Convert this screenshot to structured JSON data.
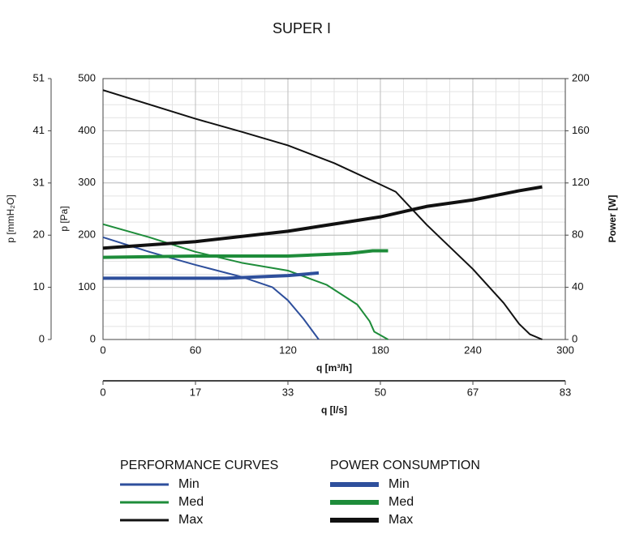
{
  "chart_data": {
    "type": "line",
    "title": "SUPER I",
    "x_label": "q [m³/h]",
    "xlim": [
      0,
      300
    ],
    "xticks": [
      0,
      60,
      120,
      180,
      240,
      300
    ],
    "x_alt_label": "q [l/s]",
    "x_alt_lim": [
      0,
      83.33
    ],
    "x_alt_ticks": [
      0,
      {
        "value": 16.67,
        "label": "17"
      },
      {
        "value": 33.33,
        "label": "33"
      },
      50,
      {
        "value": 66.67,
        "label": "67"
      },
      {
        "value": 83.33,
        "label": "83"
      }
    ],
    "y_label": "p [Pa]",
    "ylim": [
      0,
      500
    ],
    "yticks": [
      0,
      100,
      200,
      300,
      400,
      500
    ],
    "y_alt_label": "p [mmH₂O]",
    "y_alt_lim": [
      0,
      50.99
    ],
    "y_alt_ticks": [
      0,
      {
        "value": 10.2,
        "label": "10"
      },
      {
        "value": 20.39,
        "label": "20"
      },
      {
        "value": 30.59,
        "label": "31"
      },
      {
        "value": 40.79,
        "label": "41"
      },
      {
        "value": 50.99,
        "label": "51"
      }
    ],
    "y2_label": "Power [W]",
    "y2lim": [
      0,
      200
    ],
    "y2ticks": [
      0,
      40,
      80,
      120,
      160,
      200
    ],
    "grid": true,
    "legend_titles": [
      "PERFORMANCE CURVES",
      "POWER CONSUMPTION"
    ],
    "series": [
      {
        "name": "Min",
        "color": "#2e4f9c",
        "x": [
          0,
          30,
          60,
          90,
          110,
          120,
          130,
          135,
          140
        ],
        "values": [
          196,
          168,
          143,
          120,
          100,
          75,
          40,
          20,
          0
        ]
      },
      {
        "name": "Med",
        "color": "#1e8c3a",
        "x": [
          0,
          30,
          60,
          90,
          120,
          145,
          165,
          173,
          176,
          185
        ],
        "values": [
          221,
          196,
          168,
          147,
          132,
          105,
          67,
          35,
          15,
          0
        ]
      },
      {
        "name": "Max",
        "color": "#111111",
        "x": [
          0,
          60,
          90,
          120,
          150,
          180,
          190,
          210,
          240,
          260,
          270,
          277,
          285
        ],
        "values": [
          478,
          423,
          398,
          372,
          338,
          297,
          283,
          220,
          135,
          70,
          30,
          10,
          0
        ]
      },
      {
        "name": "Min",
        "color": "#2e4f9c",
        "axis": "y2",
        "x": [
          0,
          80,
          120,
          140
        ],
        "values": [
          47,
          47,
          49,
          51
        ]
      },
      {
        "name": "Med",
        "color": "#1e8c3a",
        "axis": "y2",
        "x": [
          0,
          60,
          120,
          160,
          175,
          185
        ],
        "values": [
          63,
          64,
          64,
          66,
          68,
          68
        ]
      },
      {
        "name": "Max",
        "color": "#111111",
        "axis": "y2",
        "x": [
          0,
          60,
          120,
          180,
          210,
          240,
          270,
          285
        ],
        "values": [
          70,
          75,
          83,
          94,
          102,
          107,
          114,
          117
        ]
      }
    ]
  }
}
